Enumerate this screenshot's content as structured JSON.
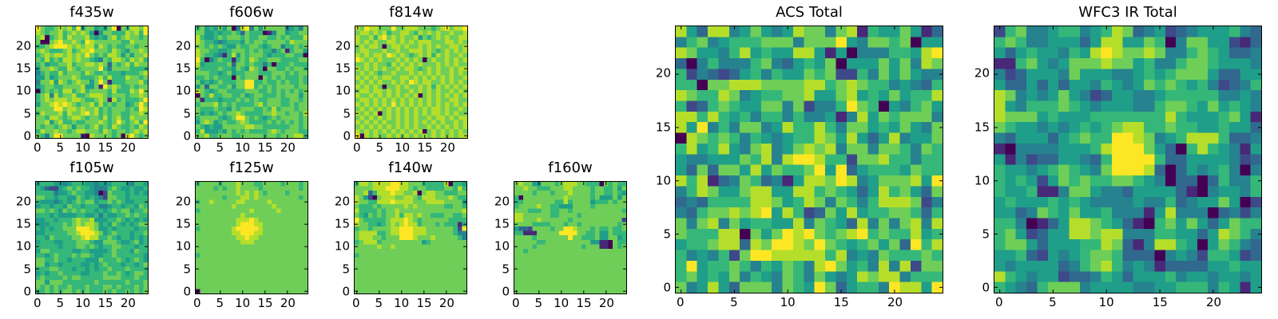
{
  "colormap": "viridis",
  "level_colors": [
    "#440154",
    "#482878",
    "#3e4989",
    "#31688e",
    "#26828e",
    "#1f9e89",
    "#35b779",
    "#6ece58",
    "#b5de2b",
    "#fde725"
  ],
  "chart_data": [
    {
      "type": "heatmap",
      "title": "f435w",
      "xticks": [
        "0",
        "5",
        "10",
        "15",
        "20"
      ],
      "yticks": [
        "0",
        "5",
        "10",
        "15",
        "20"
      ],
      "xlim": [
        -0.5,
        24.5
      ],
      "ylim": [
        -0.5,
        24.5
      ],
      "rows_top_to_bottom": [
        "9766787869577565790768879",
        "8767786787875057766687869",
        "7806786877786565786787767",
        "7007897787698777777668777",
        "6678999878788687676677677",
        "7876667867889777687657787",
        "6787887878797676887575778",
        "7686768878776547688768786",
        "6756677867788787376786877",
        "5778766876777796477776666",
        "4676686777687667666566678",
        "5575677787666786866687767",
        "4778587678775797166677786",
        "5677667777855719787667677",
        "0676768867867777686668797",
        "6784867786678887677767787",
        "6787888788766787186766679",
        "5778989876778686767756797",
        "7777997887877867677767698",
        "6877786877897867677667787",
        "7768876788767768678668777",
        "7785786676677787679767869",
        "7677678757767867687667687",
        "6877877678877768767767878",
        "7647997777108777767089767"
      ]
    },
    {
      "type": "heatmap",
      "title": "f606w",
      "xticks": [
        "0",
        "5",
        "10",
        "15",
        "20"
      ],
      "yticks": [
        "0",
        "5",
        "10",
        "15",
        "20"
      ],
      "xlim": [
        -0.5,
        24.5
      ],
      "ylim": [
        -0.5,
        24.5
      ],
      "rows_top_to_bottom": [
        "6756575704894757777745647",
        "7755656676376660147756677",
        "8655676777676677667676668",
        "8766545666576776777768777",
        "7767676557667765677466767",
        "8776655677767676646716775",
        "8766541685767776566677660",
        "9604676616768766777666677",
        "8566666737767664606667666",
        "7666676657658760776676776",
        "7776656756677766677767677",
        "6676766607677707676766676",
        "7565676667799667667676676",
        "5737766757799676767777677",
        "8765677666677766767676767",
        "0768667766756776667677757",
        "7166656667676766777667767",
        "6777867676666786777667677",
        "7666766576777667686777677",
        "7565676778766667787767768",
        "6777765679976765676777767",
        "5787567667876666767676767",
        "7656557777788776666667767",
        "6855565767676666787677766",
        "7786677766777776776777886"
      ]
    },
    {
      "type": "heatmap",
      "title": "f814w",
      "xticks": [
        "0",
        "5",
        "10",
        "15",
        "20"
      ],
      "yticks": [
        "0",
        "5",
        "10",
        "15",
        "20"
      ],
      "xlim": [
        -0.5,
        24.5
      ],
      "ylim": [
        -0.5,
        24.5
      ],
      "rows_top_to_bottom": [
        "8798877797788877767897889",
        "7887878677887687878778778",
        "8778689787877857678787788",
        "8787877887878788877788787",
        "7878870788787787878778878",
        "7887778778778887876787878",
        "8787887987876787868787787",
        "9878787778787870787787878",
        "7787877687878787778787877",
        "8787878778788767878778788",
        "7878767787778787878778787",
        "8787878877887878787878778",
        "7878787787879878877878787",
        "8787870778787787868787878",
        "7887887878778787878778787",
        "8778787878787807878787878",
        "7887878787878787878778877",
        "8787878797878787878787878",
        "7878787878787878788787787",
        "8787807878787878788787877",
        "7878787878787877878878788",
        "8787878778787878787877878",
        "7878787878787877878787878",
        "8787878787878780787878787",
        "9087877878787878787878788"
      ]
    },
    {
      "type": "heatmap",
      "title": "f105w",
      "xticks": [
        "0",
        "5",
        "10",
        "15",
        "20"
      ],
      "yticks": [
        "0",
        "5",
        "10",
        "15",
        "20"
      ],
      "xlim": [
        -0.5,
        24.5
      ],
      "ylim": [
        -0.5,
        24.5
      ],
      "rows_top_to_bottom": [
        "5666554566655455566654665",
        "6532256767665444676556556",
        "6666455676655402766656565",
        "7766566557656542776656666",
        "6555456567677566767655666",
        "5665665766566644566566576",
        "7767657676766565676775667",
        "6665655556655646556676766",
        "5566566678778555667656565",
        "5556667678788756576565677",
        "6565667779998755656666566",
        "5566666778999875676665667",
        "6657666677898866765665656",
        "5666556667776557776556756",
        "6666656667767656677666566",
        "5776666655665555676665766",
        "6656766676776556676666665",
        "7766766566655576667656765",
        "7756656666556567666566567",
        "6667766656656566766676666",
        "5656676666556667667656776",
        "6766667677666667777666766",
        "7757776666666766666676667",
        "7676766766676667767666767",
        "6676767767676667676676767"
      ]
    },
    {
      "type": "heatmap",
      "title": "f125w",
      "xticks": [
        "0",
        "5",
        "10",
        "15",
        "20"
      ],
      "yticks": [
        "0",
        "5",
        "10",
        "15",
        "20"
      ],
      "xlim": [
        -0.5,
        24.5
      ],
      "ylim": [
        -0.5,
        24.5
      ],
      "rows_top_to_bottom": [
        "6777767778777667777677767",
        "7777676778777767777777767",
        "7777777778787876777767777",
        "7777776777887877777777767",
        "6778777778877777877777777",
        "7777777787777777787777777",
        "6777777777778777778777777",
        "7777777777877777777777777",
        "7777777778889877777777777",
        "7777777778999887777777777",
        "6777777789999987777777777",
        "7777777788999887777777777",
        "7777777778898877777777777",
        "7777777777888777777777777",
        "7777777777777777777777777",
        "7777777777777777777777777",
        "6777777777777777777777777",
        "7777777777777777777777777",
        "7777777777777777777777777",
        "7777777777777777777777777",
        "7777777777777777777777777",
        "7777777777777777777777777",
        "7777777777777777777777777",
        "7777777777777777777777777",
        "0777777777777777777777777"
      ]
    },
    {
      "type": "heatmap",
      "title": "f140w",
      "xticks": [
        "0",
        "5",
        "10",
        "15",
        "20"
      ],
      "yticks": [
        "0",
        "5",
        "10",
        "15",
        "20"
      ],
      "xlim": [
        -0.5,
        24.5
      ],
      "ylim": [
        -0.5,
        24.5
      ],
      "rows_top_to_bottom": [
        "6887888899887776666680665",
        "7777888999887677666677686",
        "7783688898877807887766677",
        "8752078887788768887778766",
        "8776688898888777888877775",
        "7666767777787877777766776",
        "8666676778777777777777778",
        "7657676778688787766677667",
        "9766666788898767777776666",
        "8776656787898867776766616",
        "6776777788999888777777629",
        "7888866788999888777777644",
        "7888776777999877787777764",
        "6788867777777775677777777",
        "7777787787777777777777777",
        "7777777777777777777777777",
        "6777777777777777777777777",
        "7777777777777777777777777",
        "7777777777777777777777777",
        "7777777777777777777777777",
        "7777777777777777777777777",
        "7777777777777777777777777",
        "7777777777777777777777777",
        "7777777777777777777777777",
        "7777777777777777777777777"
      ]
    },
    {
      "type": "heatmap",
      "title": "f160w",
      "xticks": [
        "0",
        "5",
        "10",
        "15",
        "20"
      ],
      "yticks": [
        "0",
        "5",
        "10",
        "15",
        "20"
      ],
      "xlim": [
        -0.5,
        24.5
      ],
      "ylim": [
        -0.5,
        24.5
      ],
      "rows_top_to_bottom": [
        "7877557776788877666076766",
        "7787766677788777767766757",
        "7777677767778777767766765",
        "6077777777787777767555757",
        "6677777776686777756667677",
        "6777787766555777767777777",
        "7776667766776777777777776",
        "8877777766777767777777777",
        "8877787777776777777777772",
        "7777666677767767777777767",
        "5332777767799877767667667",
        "6611177777999977667557666",
        "7777677777779776667557756",
        "7777766777777777755110766",
        "7777677777777776777110767",
        "7767777777777777777777777",
        "7777777777777777777777777",
        "7777777777777777777777777",
        "7777777777777777777777777",
        "7777777777777777777777777",
        "7777777777777777777777777",
        "7777777777777777777777777",
        "7777777777777777777777777",
        "7777777777777777777777777",
        "7777777777777777777777777"
      ]
    },
    {
      "type": "heatmap",
      "title": "ACS Total",
      "xticks": [
        "0",
        "5",
        "10",
        "15",
        "20"
      ],
      "yticks": [
        "0",
        "5",
        "10",
        "15",
        "20"
      ],
      "xlim": [
        -0.5,
        24.5
      ],
      "ylim": [
        -0.5,
        24.5
      ],
      "rows_top_to_bottom": [
        "8538845754587747816557513",
        "4674566677747779547767055",
        "8755468565588515044466589",
        "3046444674356570555757487",
        "6243235646557672264757544",
        "6607788877778867876645436",
        "8766874566778557856575668",
        "6236765577472446976054675",
        "8868656466464451485767774",
        "8594647745866864775657547",
        "0876764654566875853584557",
        "6856854784578784774776476",
        "5445557684899866277866466",
        "5373775857667959356665766",
        "8681347634158879845777859",
        "4687557885588676535867537",
        "3436666887568747646888724",
        "4367787895862375856677636",
        "7478475665584765384747848",
        "7666880757989767896766856",
        "5667883879987976567573968",
        "6454627998888868454766676",
        "6956676465764897564848277",
        "6756574654764754587884666",
        "7458537774765973566498859"
      ]
    },
    {
      "type": "heatmap",
      "title": "WFC3 IR Total",
      "xticks": [
        "0",
        "5",
        "10",
        "15",
        "20"
      ],
      "yticks": [
        "0",
        "5",
        "10",
        "15",
        "20"
      ],
      "xlim": [
        -0.5,
        24.5
      ],
      "ylim": [
        -0.5,
        24.5
      ],
      "rows_top_to_bottom": [
        "2674456645687345234555643",
        "6764455535885576047755213",
        "5356554658987787446765334",
        "1167545777877564467765554",
        "4235554755544565677753355",
        "5335353554654576765642346",
        "8745457542355445666664454",
        "8546667654555446776575654",
        "8777565556666666865556751",
        "7655454565678866766556553",
        "4355535676699874568886334",
        "1044445556899975306865415",
        "5142335543699996335555423",
        "6554567654799983035456404",
        "6565257676677654033036446",
        "6556114775443555531045546",
        "5655565654444544634557502",
        "5534765755644415844403424",
        "6640135887653106757535766",
        "6752355887884446655358764",
        "6775355566873148865057643",
        "5563254567763330454266523",
        "5455553467864541333355655",
        "8654552334653555645545545",
        "6543677745555445566646515"
      ]
    }
  ]
}
